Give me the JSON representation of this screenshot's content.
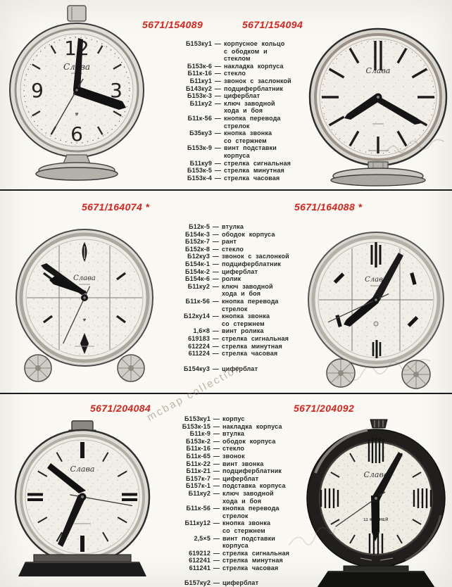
{
  "page": {
    "watermark": "mcbap collection"
  },
  "clocks": {
    "brand": "Слава",
    "numerals": {
      "n12": "12",
      "n3": "3",
      "n6": "6",
      "n9": "9"
    },
    "jewels_label": "11 КАМНЕЙ",
    "heart_symbol": "♥"
  },
  "sections": [
    {
      "left_header": "5671/154089",
      "right_header": "5671/154094",
      "parts": [
        {
          "code": "Б153ку1",
          "desc": "корпусное кольцо\nс ободком и\nстеклом"
        },
        {
          "code": "Б153к-6",
          "desc": "накладка корпуса"
        },
        {
          "code": "Б11к-16",
          "desc": "стекло"
        },
        {
          "code": "Б11ку1",
          "desc": "звонок с заслонкой"
        },
        {
          "code": "Б143ку2",
          "desc": "подциферблатник"
        },
        {
          "code": "Б153к-3",
          "desc": "циферблат"
        },
        {
          "code": "Б11ку2",
          "desc": "ключ заводной\nхода и боя"
        },
        {
          "code": "Б11к-56",
          "desc": "кнопка перевода\nстрелок"
        },
        {
          "code": "Б35ку3",
          "desc": "кнопка звонка\nсо стержнем"
        },
        {
          "code": "Б153к-9",
          "desc": "винт подставки\nкорпуса"
        },
        {
          "code": "Б11ку9",
          "desc": "стрелка сигнальная"
        },
        {
          "code": "Б153к-5",
          "desc": "стрелка минутная"
        },
        {
          "code": "Б153к-4",
          "desc": "стрелка часовая"
        }
      ]
    },
    {
      "left_header": "5671/164074 *",
      "right_header": "5671/164088 *",
      "parts": [
        {
          "code": "Б12к-5",
          "desc": "втулка"
        },
        {
          "code": "Б154к-3",
          "desc": "ободок корпуса"
        },
        {
          "code": "Б152к-7",
          "desc": "рант"
        },
        {
          "code": "Б152к-8",
          "desc": "стекло"
        },
        {
          "code": "Б12ку3",
          "desc": "звонок с заслонкой"
        },
        {
          "code": "Б154к-1",
          "desc": "подциферблатник"
        },
        {
          "code": "Б154к-2",
          "desc": "циферблат"
        },
        {
          "code": "Б154к-6",
          "desc": "ролик"
        },
        {
          "code": "Б11ку2",
          "desc": "ключ заводной\nхода и боя"
        },
        {
          "code": "Б11к-56",
          "desc": "кнопка перевода\nстрелок"
        },
        {
          "code": "Б12ку14",
          "desc": "кнопка звонка\nсо стержнем"
        },
        {
          "code": "1,6×8",
          "desc": "винт ролика"
        },
        {
          "code": "619183",
          "desc": "стрелка сигнальная"
        },
        {
          "code": "612224",
          "desc": "стрелка минутная"
        },
        {
          "code": "611224",
          "desc": "стрелка часовая"
        },
        {
          "code": "Б154ку3",
          "desc": "циферблат",
          "gap": true
        }
      ]
    },
    {
      "left_header": "5671/204084",
      "right_header": "5671/204092",
      "parts": [
        {
          "code": "Б153ку1",
          "desc": "корпус"
        },
        {
          "code": "Б153к-15",
          "desc": "накладка корпуса"
        },
        {
          "code": "Б11к-9",
          "desc": "втулка"
        },
        {
          "code": "Б153к-2",
          "desc": "ободок корпуса"
        },
        {
          "code": "Б11к-16",
          "desc": "стекло"
        },
        {
          "code": "Б11к-65",
          "desc": "звонок"
        },
        {
          "code": "Б11к-22",
          "desc": "винт звонка"
        },
        {
          "code": "Б11к-21",
          "desc": "подциферблатник"
        },
        {
          "code": "Б157к-7",
          "desc": "циферблат"
        },
        {
          "code": "Б157к-1",
          "desc": "подставка корпуса"
        },
        {
          "code": "Б11ку2",
          "desc": "ключ заводной\nхода и боя"
        },
        {
          "code": "Б11к-56",
          "desc": "кнопка перевода\nстрелок"
        },
        {
          "code": "Б11ку12",
          "desc": "кнопка звонка\nсо стержнем"
        },
        {
          "code": "2,5×5",
          "desc": "винт подставки\nкорпуса"
        },
        {
          "code": "619212",
          "desc": "стрелка сигнальная"
        },
        {
          "code": "612241",
          "desc": "стрелка минутная"
        },
        {
          "code": "611241",
          "desc": "стрелка часовая"
        },
        {
          "code": "Б157ку2",
          "desc": "циферблат",
          "gap": true
        }
      ]
    }
  ]
}
